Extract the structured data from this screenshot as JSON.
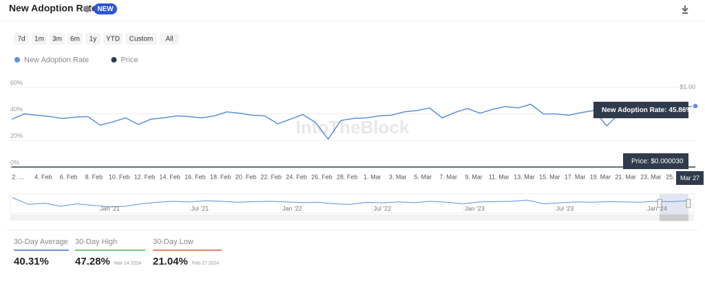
{
  "header": {
    "title": "New Adoption Rate",
    "badge": "NEW"
  },
  "range_buttons": [
    "7d",
    "1m",
    "3m",
    "6m",
    "1y",
    "YTD",
    "Custom",
    "All"
  ],
  "chart_data": {
    "type": "line",
    "categories": [
      "2. ...",
      null,
      "4. Feb",
      null,
      "6. Feb",
      null,
      "8. Feb",
      null,
      "10. Feb",
      null,
      "12. Feb",
      null,
      "14. Feb",
      null,
      "16. Feb",
      null,
      "18. Feb",
      null,
      "20. Feb",
      null,
      "22. Feb",
      null,
      "24. Feb",
      null,
      "26. Feb",
      null,
      "28. Feb",
      null,
      "1. Mar",
      null,
      "3. Mar",
      null,
      "5. Mar",
      null,
      "7. Mar",
      null,
      "9. Mar",
      null,
      "11. Mar",
      null,
      "13. Mar",
      null,
      "15. Mar",
      null,
      "17. Mar",
      null,
      "19. Mar",
      null,
      "21. Mar",
      null,
      "23. Mar",
      null,
      "25. M...",
      null,
      null
    ],
    "series": [
      {
        "name": "New Adoption Rate",
        "color": "#5b8fd9",
        "values": [
          36,
          40,
          39,
          38,
          36.5,
          37.5,
          38,
          31.5,
          34,
          37,
          32,
          36,
          37,
          38.5,
          38,
          37,
          38.5,
          41.5,
          40.5,
          39,
          38.5,
          32.5,
          36,
          39.5,
          33.5,
          21.04,
          35,
          36.5,
          37,
          38.5,
          39,
          41.5,
          42.5,
          44.5,
          37,
          41,
          44,
          40.5,
          43.5,
          45.5,
          44.5,
          47.28,
          40,
          40,
          39,
          41,
          42.5,
          31,
          40.5,
          39.5,
          37.5,
          38.5,
          44,
          45,
          45.86
        ]
      },
      {
        "name": "Price",
        "color": "#2f3b4c",
        "axis": "y2",
        "values": [
          3e-05,
          3e-05,
          3e-05,
          3e-05,
          3e-05,
          3e-05,
          3e-05,
          3e-05,
          3e-05,
          3e-05,
          3e-05,
          3e-05,
          3e-05,
          3e-05,
          3e-05,
          3e-05,
          3e-05,
          3e-05,
          3e-05,
          3e-05,
          3e-05,
          3e-05,
          3e-05,
          3e-05,
          3e-05,
          3e-05,
          3e-05,
          3e-05,
          3e-05,
          3e-05,
          3e-05,
          3e-05,
          3e-05,
          3e-05,
          3e-05,
          3e-05,
          3e-05,
          3e-05,
          3e-05,
          3e-05,
          3e-05,
          3e-05,
          3e-05,
          3e-05,
          3e-05,
          3e-05,
          3e-05,
          3e-05,
          3e-05,
          3e-05,
          3e-05,
          3e-05,
          3e-05,
          3e-05,
          3e-05
        ]
      }
    ],
    "ylim": [
      0,
      60
    ],
    "yticks": [
      {
        "value": 0,
        "label": "0%"
      },
      {
        "value": 20,
        "label": "20%"
      },
      {
        "value": 40,
        "label": "40%"
      },
      {
        "value": 60,
        "label": "60%"
      }
    ],
    "y2lim": [
      0,
      1
    ],
    "y2ticks": [
      {
        "value": 1,
        "label": "$1.00"
      }
    ],
    "grid": true,
    "watermark": "IntoTheBlock",
    "tooltips": [
      "New Adoption Rate: 45.86%",
      "Price: $0.000030"
    ],
    "crosshair_label": "Mar 27"
  },
  "navigator": {
    "labels": [
      "Jan '21",
      "Jul '21",
      "Jan '22",
      "Jul '22",
      "Jan '23",
      "Jul '23",
      "Jan '24"
    ],
    "ylim": [
      0,
      60
    ],
    "values": [
      50,
      28,
      32,
      22,
      30,
      25,
      20,
      22,
      30,
      35,
      38,
      36,
      40,
      38,
      35,
      37,
      38,
      36,
      34,
      35,
      30,
      28,
      35,
      33,
      36,
      34,
      38,
      35,
      30,
      36,
      37,
      38,
      42,
      30,
      33,
      36,
      35,
      37,
      36,
      35,
      38,
      37,
      40
    ]
  },
  "stats": [
    {
      "label": "30-Day Average",
      "value": "40.31%",
      "color": "#3a6fd8"
    },
    {
      "label": "30-Day High",
      "value": "47.28%",
      "date": "Mar 14 2024",
      "color": "#4caf50"
    },
    {
      "label": "30-Day Low",
      "value": "21.04%",
      "date": "Feb 27 2024",
      "color": "#e0533a"
    }
  ]
}
